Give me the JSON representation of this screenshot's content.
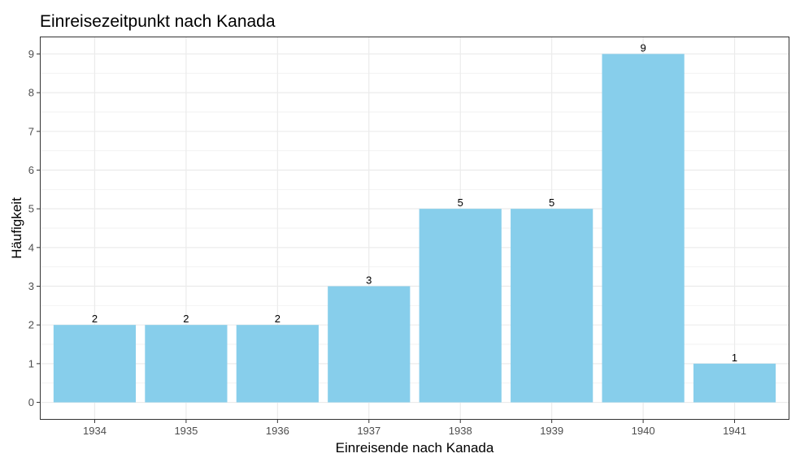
{
  "chart_data": {
    "type": "bar",
    "title": "Einreisezeitpunkt nach Kanada",
    "xlabel": "Einreisende nach Kanada",
    "ylabel": "Häufigkeit",
    "categories": [
      "1934",
      "1935",
      "1936",
      "1937",
      "1938",
      "1939",
      "1940",
      "1941"
    ],
    "values": [
      2,
      2,
      2,
      3,
      5,
      5,
      9,
      1
    ],
    "ylim": [
      -0.45,
      9.45
    ],
    "yticks": [
      0,
      1,
      2,
      3,
      4,
      5,
      6,
      7,
      8,
      9
    ],
    "bar_color": "#87CEEB",
    "grid": true,
    "data_labels": true
  }
}
